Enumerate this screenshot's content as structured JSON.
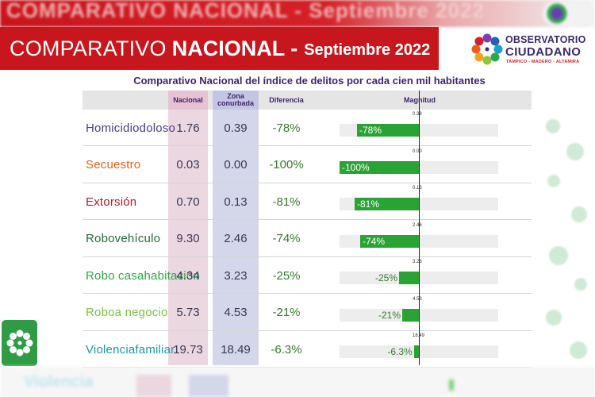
{
  "header": {
    "ghost_title": "COMPARATIVO NACIONAL - Septiembre 2022",
    "title_light": "COMPARATIVO",
    "title_bold": "NACIONAL",
    "title_dash": "-",
    "title_date": "Septiembre 2022"
  },
  "logo": {
    "line1": "OBSERVATORIO",
    "line2": "CIUDADANO",
    "line3": "TAMPICO - MADERO - ALTAMIRA"
  },
  "subtitle": "Comparativo Nacional del índice de delitos por cada cien mil habitantes",
  "columns": {
    "nacional": "Nacional",
    "zona_line1": "Zona",
    "zona_line2": "conurbada",
    "diferencia": "Diferencia",
    "magnitud": "Magnitud"
  },
  "rows": [
    {
      "crime_line1": "Homicidio",
      "crime_line2": "doloso",
      "color": "#4a3d8f",
      "nacional": "1.76",
      "zona": "0.39",
      "diferencia": "-78%",
      "pct": -78,
      "top_label": "0.39"
    },
    {
      "crime_line1": "Secuestro",
      "crime_line2": "",
      "color": "#e8601c",
      "nacional": "0.03",
      "zona": "0.00",
      "diferencia": "-100%",
      "pct": -100,
      "top_label": "0.00"
    },
    {
      "crime_line1": "Extorsión",
      "crime_line2": "",
      "color": "#c0172b",
      "nacional": "0.70",
      "zona": "0.13",
      "diferencia": "-81%",
      "pct": -81,
      "top_label": "0.13"
    },
    {
      "crime_line1": "Robo",
      "crime_line2": "vehículo",
      "color": "#1e6b3a",
      "nacional": "9.30",
      "zona": "2.46",
      "diferencia": "-74%",
      "pct": -74,
      "top_label": "2.46"
    },
    {
      "crime_line1": "Robo casa",
      "crime_line2": "habitación",
      "color": "#2ba84a",
      "nacional": "4.34",
      "zona": "3.23",
      "diferencia": "-25%",
      "pct": -25,
      "top_label": "3.23"
    },
    {
      "crime_line1": "Robo",
      "crime_line2": "a negocio",
      "color": "#7cc043",
      "nacional": "5.73",
      "zona": "4.53",
      "diferencia": "-21%",
      "pct": -21,
      "top_label": "4.53"
    },
    {
      "crime_line1": "Violencia",
      "crime_line2": "familiar",
      "color": "#1a9aa0",
      "nacional": "19.73",
      "zona": "18.49",
      "diferencia": "-6.3%",
      "pct": -6.3,
      "top_label": "18.49"
    }
  ],
  "bottom_ghost": "Violencia",
  "colors": {
    "brand_red": "#c8161e",
    "bar_green": "#2aa335",
    "nacional_column": "#ead7e0",
    "zona_column": "#d4d6ea"
  },
  "icons": [
    "observatorio-logo-icon",
    "observatorio-side-icon"
  ]
}
